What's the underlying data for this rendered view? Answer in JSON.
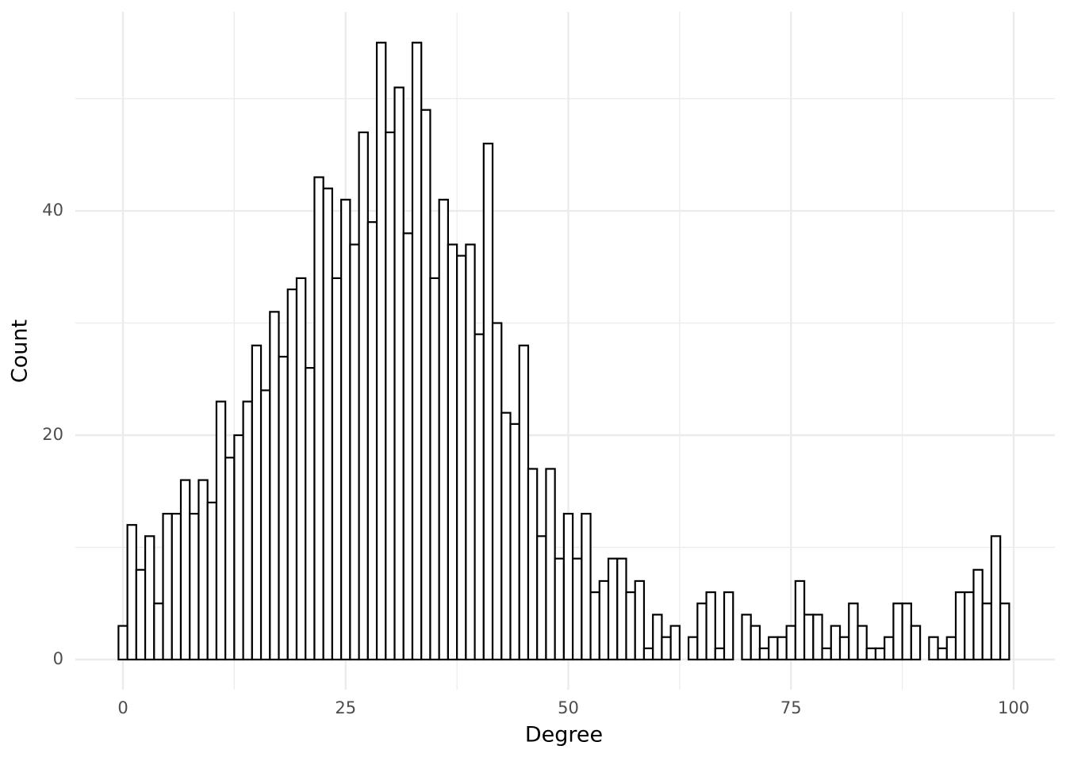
{
  "chart_data": {
    "type": "histogram",
    "x_label": "Degree",
    "y_label": "Count",
    "bins": [
      -0.5,
      0.5,
      1.5,
      2.5,
      3.5,
      4.5,
      5.5,
      6.5,
      7.5,
      8.5,
      9.5,
      10.5,
      11.5,
      12.5,
      13.5,
      14.5,
      15.5,
      16.5,
      17.5,
      18.5,
      19.5,
      20.5,
      21.5,
      22.5,
      23.5,
      24.5,
      25.5,
      26.5,
      27.5,
      28.5,
      29.5,
      30.5,
      31.5,
      32.5,
      33.5,
      34.5,
      35.5,
      36.5,
      37.5,
      38.5,
      39.5,
      40.5,
      41.5,
      42.5,
      43.5,
      44.5,
      45.5,
      46.5,
      47.5,
      48.5,
      49.5,
      50.5,
      51.5,
      52.5,
      53.5,
      54.5,
      55.5,
      56.5,
      57.5,
      58.5,
      59.5,
      60.5,
      61.5,
      62.5,
      63.5,
      64.5,
      65.5,
      66.5,
      67.5,
      68.5,
      69.5,
      70.5,
      71.5,
      72.5,
      73.5,
      74.5,
      75.5,
      76.5,
      77.5,
      78.5,
      79.5,
      80.5,
      81.5,
      82.5,
      83.5,
      84.5,
      85.5,
      86.5,
      87.5,
      88.5,
      89.5,
      90.5,
      91.5,
      92.5,
      93.5,
      94.5,
      95.5,
      96.5,
      97.5,
      98.5,
      99.5
    ],
    "values": [
      3,
      12,
      8,
      11,
      5,
      13,
      13,
      16,
      13,
      16,
      14,
      23,
      18,
      20,
      23,
      28,
      24,
      31,
      27,
      33,
      34,
      26,
      43,
      42,
      34,
      41,
      37,
      47,
      39,
      55,
      47,
      51,
      38,
      55,
      49,
      34,
      41,
      37,
      36,
      37,
      29,
      46,
      30,
      22,
      21,
      28,
      17,
      11,
      17,
      9,
      13,
      9,
      13,
      6,
      7,
      9,
      9,
      6,
      7,
      1,
      4,
      2,
      3,
      0,
      2,
      5,
      6,
      1,
      6,
      0,
      4,
      3,
      1,
      2,
      2,
      3,
      7,
      4,
      4,
      1,
      3,
      2,
      5,
      3,
      1,
      1,
      2,
      5,
      5,
      3,
      0,
      2,
      1,
      2,
      6,
      6,
      8,
      5,
      11,
      5
    ],
    "fill": "#ffffff",
    "edge_color": "#000000",
    "xlim": [
      -5.343,
      104.63
    ],
    "ylim": [
      -2.686,
      57.74
    ],
    "xticks": [
      0,
      25,
      50,
      75,
      100
    ],
    "yticks": [
      0,
      20,
      40
    ],
    "x_minor_ticks": [
      12.5,
      37.5,
      62.5,
      87.5
    ],
    "y_minor_ticks": [
      10,
      30,
      50
    ],
    "grid": true
  }
}
